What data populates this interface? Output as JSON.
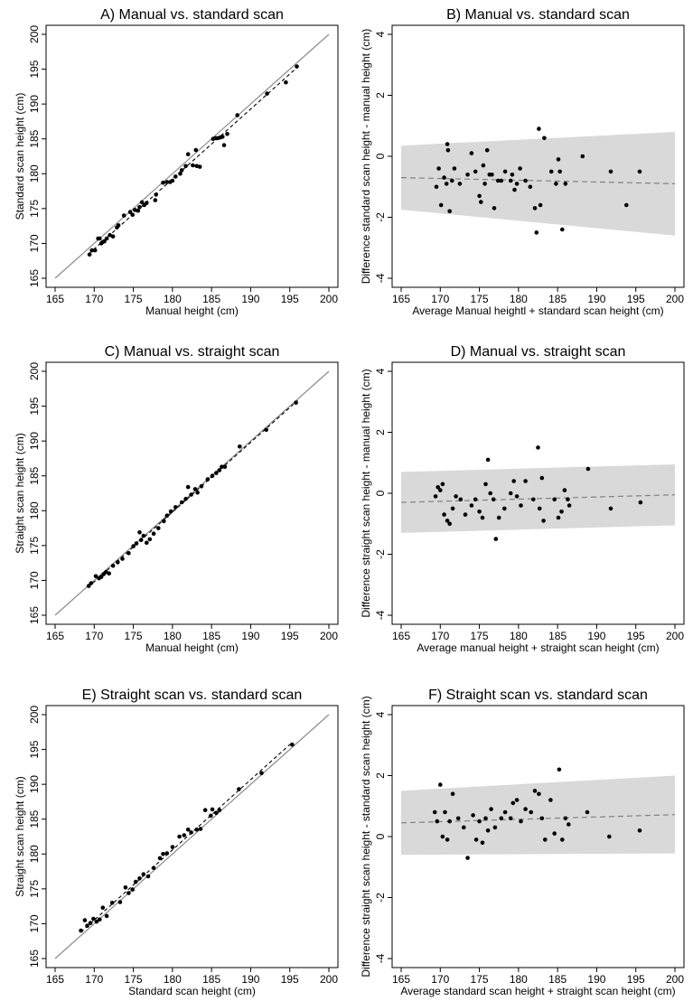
{
  "chart_data": [
    {
      "type": "scatter",
      "title": "A) Manual vs. standard scan",
      "xlabel": "Manual height (cm)",
      "ylabel": "Standard scan height (cm)",
      "xlim": [
        165,
        200
      ],
      "ylim": [
        165,
        200
      ],
      "xticks": [
        "165",
        "170",
        "175",
        "180",
        "185",
        "190",
        "195",
        "200"
      ],
      "yticks": [
        "165",
        "170",
        "175",
        "180",
        "185",
        "190",
        "195",
        "200"
      ],
      "identity_line": true,
      "fit_line": {
        "x": [
          169.3,
          196
        ],
        "y": [
          168.5,
          195.3
        ]
      },
      "points": {
        "x": [
          169.4,
          169.7,
          170.1,
          170.5,
          170.7,
          170.9,
          171.1,
          171.3,
          171.6,
          172.0,
          172.4,
          172.9,
          173.1,
          173.8,
          174.6,
          174.9,
          175.2,
          175.6,
          175.8,
          176.1,
          176.4,
          176.7,
          177.8,
          177.9,
          178.8,
          179.3,
          179.7,
          180.0,
          180.4,
          181.0,
          181.2,
          181.7,
          182.0,
          182.6,
          183.0,
          183.1,
          183.5,
          185.2,
          185.5,
          185.8,
          186.1,
          186.4,
          186.6,
          187.0,
          188.3,
          192.1,
          194.5,
          195.9
        ],
        "y": [
          168.4,
          169.0,
          169.0,
          170.7,
          170.7,
          170.0,
          170.2,
          170.3,
          170.7,
          171.2,
          171.0,
          172.3,
          172.6,
          174.0,
          174.5,
          174.1,
          174.8,
          174.7,
          175.2,
          175.9,
          175.5,
          175.8,
          176.2,
          177.0,
          178.7,
          178.8,
          178.8,
          179.0,
          179.6,
          180.0,
          180.5,
          181.1,
          182.8,
          181.2,
          183.4,
          181.1,
          181.0,
          185.0,
          185.1,
          185.1,
          185.2,
          185.3,
          184.1,
          185.7,
          188.4,
          191.5,
          193.1,
          195.4
        ]
      }
    },
    {
      "type": "scatter",
      "title": "B) Manual vs. standard scan",
      "xlabel": "Average Manual heightl + standard scan height (cm)",
      "ylabel": "Difference standard scan height - manual height (cm)",
      "xlim": [
        165,
        200
      ],
      "ylim": [
        -4,
        4
      ],
      "xticks": [
        "165",
        "170",
        "175",
        "180",
        "185",
        "190",
        "195",
        "200"
      ],
      "yticks": [
        "-4",
        "-2",
        "0",
        "2",
        "4"
      ],
      "agreement_band": {
        "x": [
          165,
          200
        ],
        "upper": [
          0.35,
          0.8
        ],
        "lower": [
          -1.75,
          -2.6
        ]
      },
      "mean_line": {
        "x": [
          165,
          200
        ],
        "y": [
          -0.7,
          -0.9
        ]
      },
      "points": {
        "x": [
          169.5,
          169.8,
          170.1,
          170.5,
          170.8,
          170.9,
          171.0,
          171.2,
          171.5,
          171.8,
          172.5,
          173.5,
          174.0,
          174.5,
          175.0,
          175.2,
          175.5,
          175.7,
          176.0,
          176.3,
          176.6,
          176.9,
          177.4,
          177.8,
          178.3,
          179.0,
          179.2,
          179.5,
          179.8,
          180.2,
          180.9,
          181.5,
          182.1,
          182.3,
          182.6,
          182.8,
          183.3,
          184.2,
          184.8,
          185.1,
          185.3,
          185.6,
          186.0,
          188.2,
          191.8,
          193.8,
          195.5
        ],
        "y": [
          -1.0,
          -0.4,
          -1.6,
          -0.7,
          -0.9,
          0.4,
          0.2,
          -1.8,
          -0.8,
          -0.4,
          -0.9,
          -0.6,
          0.1,
          -0.5,
          -1.3,
          -1.5,
          -0.3,
          -0.9,
          0.2,
          -0.6,
          -0.6,
          -1.7,
          -0.8,
          -0.8,
          -0.5,
          -0.8,
          -0.6,
          -1.1,
          -0.9,
          -0.4,
          -0.8,
          -1.0,
          -1.7,
          -2.5,
          0.9,
          -1.6,
          0.6,
          -0.5,
          -0.9,
          -0.1,
          -0.5,
          -2.4,
          -0.9,
          0.0,
          -0.5,
          -1.6,
          -0.5
        ]
      }
    },
    {
      "type": "scatter",
      "title": "C) Manual vs. straight scan",
      "xlabel": "Manual height (cm)",
      "ylabel": "Straight scan height (cm)",
      "xlim": [
        165,
        200
      ],
      "ylim": [
        165,
        200
      ],
      "xticks": [
        "165",
        "170",
        "175",
        "180",
        "185",
        "190",
        "195",
        "200"
      ],
      "yticks": [
        "165",
        "170",
        "175",
        "180",
        "185",
        "190",
        "195",
        "200"
      ],
      "identity_line": true,
      "fit_line": {
        "x": [
          169.2,
          196
        ],
        "y": [
          169.0,
          195.8
        ]
      },
      "points": {
        "x": [
          169.3,
          169.6,
          170.2,
          170.6,
          170.9,
          171.2,
          171.5,
          171.9,
          172.4,
          173.0,
          173.6,
          174.4,
          175.0,
          175.4,
          175.8,
          176.0,
          176.3,
          176.7,
          177.1,
          177.6,
          178.2,
          178.9,
          179.3,
          179.8,
          180.4,
          181.2,
          181.7,
          182.0,
          182.4,
          182.9,
          183.2,
          183.7,
          184.5,
          185.1,
          185.6,
          186.0,
          186.3,
          186.7,
          188.6,
          192.0,
          195.8
        ],
        "y": [
          169.2,
          169.6,
          170.6,
          170.3,
          170.5,
          170.9,
          171.2,
          171.0,
          172.1,
          172.6,
          173.1,
          173.9,
          174.9,
          175.3,
          176.9,
          175.8,
          176.4,
          175.4,
          175.9,
          176.7,
          177.5,
          178.5,
          179.3,
          179.9,
          180.5,
          181.2,
          181.7,
          183.4,
          182.3,
          183.1,
          182.6,
          183.5,
          184.5,
          185.0,
          185.4,
          185.8,
          186.3,
          186.3,
          189.2,
          191.6,
          195.5
        ]
      }
    },
    {
      "type": "scatter",
      "title": "D) Manual vs. straight scan",
      "xlabel": "Average manual height + straight scan height (cm)",
      "ylabel": "Difference straight scan height - manual height (cm)",
      "xlim": [
        165,
        200
      ],
      "ylim": [
        -4,
        4
      ],
      "xticks": [
        "165",
        "170",
        "175",
        "180",
        "185",
        "190",
        "195",
        "200"
      ],
      "yticks": [
        "-4",
        "-2",
        "0",
        "2",
        "4"
      ],
      "agreement_band": {
        "x": [
          165,
          200
        ],
        "upper": [
          0.7,
          0.95
        ],
        "lower": [
          -1.3,
          -1.05
        ]
      },
      "mean_line": {
        "x": [
          165,
          200
        ],
        "y": [
          -0.3,
          -0.05
        ]
      },
      "points": {
        "x": [
          169.4,
          169.7,
          170.0,
          170.3,
          170.5,
          170.9,
          171.2,
          171.6,
          172.0,
          172.6,
          173.2,
          174.0,
          174.5,
          175.0,
          175.4,
          175.8,
          176.1,
          176.4,
          176.8,
          177.1,
          177.5,
          178.2,
          179.0,
          179.4,
          179.8,
          180.3,
          180.9,
          181.9,
          182.5,
          182.7,
          183.0,
          183.2,
          184.6,
          185.1,
          185.5,
          185.9,
          186.3,
          186.5,
          188.9,
          191.8,
          195.6
        ],
        "y": [
          -0.1,
          0.2,
          0.1,
          0.3,
          -0.7,
          -0.9,
          -1.0,
          -0.5,
          -0.1,
          -0.2,
          -0.7,
          -0.4,
          -0.2,
          -0.6,
          -0.8,
          0.3,
          1.1,
          0.0,
          -0.2,
          -1.5,
          -0.8,
          -0.5,
          0.0,
          0.4,
          -0.1,
          -0.4,
          0.4,
          -0.2,
          1.5,
          -0.5,
          0.5,
          -0.9,
          -0.2,
          -0.8,
          -0.6,
          0.1,
          -0.2,
          -0.4,
          0.8,
          -0.5,
          -0.3
        ]
      }
    },
    {
      "type": "scatter",
      "title": "E) Straight scan vs. standard scan",
      "xlabel": "Standard scan height (cm)",
      "ylabel": "Straight scan height (cm)",
      "xlim": [
        165,
        200
      ],
      "ylim": [
        165,
        200
      ],
      "xticks": [
        "165",
        "170",
        "175",
        "180",
        "185",
        "190",
        "195",
        "200"
      ],
      "yticks": [
        "165",
        "170",
        "175",
        "180",
        "185",
        "190",
        "195",
        "200"
      ],
      "identity_line": true,
      "fit_line": {
        "x": [
          168.3,
          195.3
        ],
        "y": [
          168.8,
          196
        ]
      },
      "points": {
        "x": [
          168.3,
          168.8,
          169.1,
          169.5,
          169.9,
          170.3,
          170.7,
          171.1,
          171.6,
          172.3,
          173.3,
          174.0,
          174.4,
          174.9,
          175.3,
          175.8,
          176.3,
          176.9,
          177.6,
          178.4,
          178.8,
          179.3,
          180.0,
          180.9,
          181.5,
          182.0,
          182.4,
          183.1,
          183.6,
          184.2,
          184.9,
          185.1,
          185.6,
          186.0,
          188.5,
          191.4,
          195.3
        ],
        "y": [
          169.0,
          170.5,
          169.7,
          170.1,
          170.7,
          170.3,
          170.6,
          172.3,
          171.1,
          173.0,
          173.1,
          175.2,
          174.4,
          174.9,
          176.0,
          176.5,
          177.1,
          176.8,
          178.0,
          179.4,
          180.0,
          180.1,
          181.0,
          182.5,
          182.7,
          183.5,
          183.1,
          183.5,
          183.6,
          186.3,
          185.5,
          186.4,
          185.9,
          186.3,
          189.3,
          191.6,
          195.7
        ]
      }
    },
    {
      "type": "scatter",
      "title": "F) Straight scan vs. standard scan",
      "xlabel": "Average standard scan height + straight scan height (cm)",
      "ylabel": "Difference straight scan height - standard scan height (cm)",
      "xlim": [
        165,
        200
      ],
      "ylim": [
        -4,
        4
      ],
      "xticks": [
        "165",
        "170",
        "175",
        "180",
        "185",
        "190",
        "195",
        "200"
      ],
      "yticks": [
        "-4",
        "-2",
        "0",
        "2",
        "4"
      ],
      "agreement_band": {
        "x": [
          165,
          200
        ],
        "upper": [
          1.5,
          2.0
        ],
        "lower": [
          -0.6,
          -0.55
        ]
      },
      "mean_line": {
        "x": [
          165,
          200
        ],
        "y": [
          0.45,
          0.72
        ]
      },
      "points": {
        "x": [
          169.3,
          169.6,
          170.0,
          170.3,
          170.6,
          170.9,
          171.2,
          171.6,
          172.3,
          173.0,
          173.5,
          174.2,
          174.6,
          175.0,
          175.4,
          175.8,
          176.1,
          176.5,
          177.0,
          177.8,
          178.3,
          179.0,
          179.3,
          179.8,
          180.3,
          180.9,
          181.6,
          182.1,
          182.6,
          183.0,
          183.4,
          184.1,
          184.6,
          185.2,
          185.6,
          186.0,
          186.4,
          188.8,
          191.6,
          195.5
        ],
        "y": [
          0.8,
          0.5,
          1.7,
          0.0,
          0.8,
          -0.1,
          0.5,
          1.4,
          0.6,
          0.3,
          -0.7,
          0.7,
          -0.1,
          0.5,
          -0.2,
          0.6,
          0.2,
          0.9,
          0.3,
          0.6,
          0.8,
          0.6,
          1.1,
          1.2,
          0.5,
          0.9,
          0.8,
          1.5,
          1.4,
          0.6,
          -0.1,
          1.2,
          0.1,
          2.2,
          -0.1,
          0.6,
          0.4,
          0.8,
          0.0,
          0.2
        ]
      }
    }
  ]
}
